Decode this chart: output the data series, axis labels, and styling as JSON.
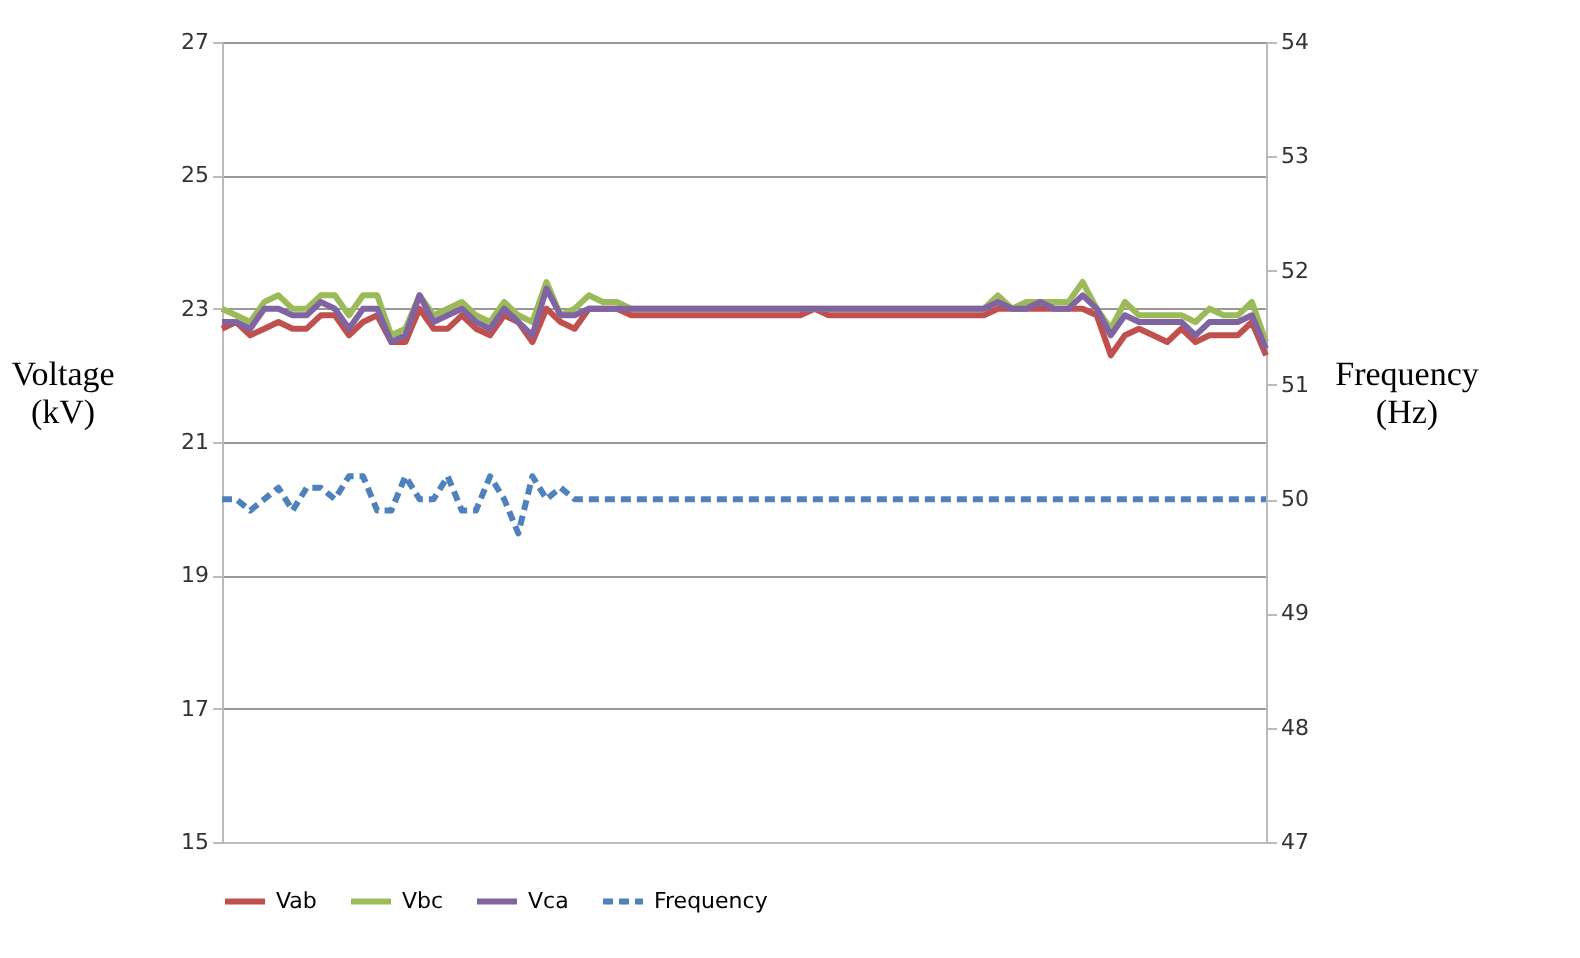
{
  "chart_data": {
    "type": "line",
    "ylabel": "Voltage (kV)",
    "y2label": "Frequency (Hz)",
    "categories": [
      null,
      null,
      null,
      null,
      null,
      null,
      null,
      null,
      null,
      null,
      null,
      null,
      null,
      null,
      null,
      null,
      null,
      null,
      null,
      null,
      null,
      null,
      null,
      null,
      null,
      null,
      null,
      null,
      null,
      null,
      null,
      null,
      null,
      null,
      null,
      null,
      null,
      null,
      null,
      null,
      null,
      null,
      null,
      null,
      null,
      null,
      null,
      null,
      null,
      null,
      null,
      null,
      null,
      null,
      null,
      null,
      null,
      null,
      null,
      null,
      null,
      null,
      null,
      null,
      null,
      null,
      null,
      null,
      null,
      null,
      null,
      null,
      null,
      null,
      null
    ],
    "series": [
      {
        "name": "Vab",
        "color": "#c0504d",
        "line_style": "solid",
        "values": [
          22.7,
          22.8,
          22.6,
          22.7,
          22.8,
          22.7,
          22.7,
          22.9,
          22.9,
          22.6,
          22.8,
          22.9,
          22.5,
          22.5,
          23.0,
          22.7,
          22.7,
          22.9,
          22.7,
          22.6,
          22.9,
          22.8,
          22.5,
          23.0,
          22.8,
          22.7,
          23.0,
          23.0,
          23.0,
          22.9,
          22.9,
          22.9,
          22.9,
          22.9,
          22.9,
          22.9,
          22.9,
          22.9,
          22.9,
          22.9,
          22.9,
          22.9,
          23.0,
          22.9,
          22.9,
          22.9,
          22.9,
          22.9,
          22.9,
          22.9,
          22.9,
          22.9,
          22.9,
          22.9,
          22.9,
          23.0,
          23.0,
          23.0,
          23.0,
          23.0,
          23.0,
          23.0,
          22.9,
          22.3,
          22.6,
          22.7,
          22.6,
          22.5,
          22.7,
          22.5,
          22.6,
          22.6,
          22.6,
          22.8,
          22.3
        ]
      },
      {
        "name": "Vbc",
        "color": "#9bbb59",
        "line_style": "solid",
        "values": [
          23.0,
          22.9,
          22.8,
          23.1,
          23.2,
          23.0,
          23.0,
          23.2,
          23.2,
          22.9,
          23.2,
          23.2,
          22.6,
          22.7,
          23.2,
          22.9,
          23.0,
          23.1,
          22.9,
          22.8,
          23.1,
          22.9,
          22.8,
          23.4,
          22.9,
          23.0,
          23.2,
          23.1,
          23.1,
          23.0,
          23.0,
          23.0,
          23.0,
          23.0,
          23.0,
          23.0,
          23.0,
          23.0,
          23.0,
          23.0,
          23.0,
          23.0,
          23.0,
          23.0,
          23.0,
          23.0,
          23.0,
          23.0,
          23.0,
          23.0,
          23.0,
          23.0,
          23.0,
          23.0,
          23.0,
          23.2,
          23.0,
          23.1,
          23.1,
          23.1,
          23.1,
          23.4,
          23.0,
          22.7,
          23.1,
          22.9,
          22.9,
          22.9,
          22.9,
          22.8,
          23.0,
          22.9,
          22.9,
          23.1,
          22.5
        ]
      },
      {
        "name": "Vca",
        "color": "#8064a2",
        "line_style": "solid",
        "values": [
          22.8,
          22.8,
          22.7,
          23.0,
          23.0,
          22.9,
          22.9,
          23.1,
          23.0,
          22.7,
          23.0,
          23.0,
          22.5,
          22.6,
          23.2,
          22.8,
          22.9,
          23.0,
          22.8,
          22.7,
          23.0,
          22.8,
          22.6,
          23.3,
          22.9,
          22.9,
          23.0,
          23.0,
          23.0,
          23.0,
          23.0,
          23.0,
          23.0,
          23.0,
          23.0,
          23.0,
          23.0,
          23.0,
          23.0,
          23.0,
          23.0,
          23.0,
          23.0,
          23.0,
          23.0,
          23.0,
          23.0,
          23.0,
          23.0,
          23.0,
          23.0,
          23.0,
          23.0,
          23.0,
          23.0,
          23.1,
          23.0,
          23.0,
          23.1,
          23.0,
          23.0,
          23.2,
          23.0,
          22.6,
          22.9,
          22.8,
          22.8,
          22.8,
          22.8,
          22.6,
          22.8,
          22.8,
          22.8,
          22.9,
          22.4
        ]
      },
      {
        "name": "Frequency",
        "color": "#4f81bd",
        "axis": "y2",
        "line_style": "dashed",
        "values": [
          50.0,
          50.0,
          49.9,
          50.0,
          50.1,
          49.9,
          50.1,
          50.1,
          50.0,
          50.2,
          50.2,
          49.9,
          49.9,
          50.2,
          50.0,
          50.0,
          50.2,
          49.9,
          49.9,
          50.2,
          50.0,
          49.7,
          50.2,
          50.0,
          50.1,
          50.0,
          50.0,
          50.0,
          50.0,
          50.0,
          50.0,
          50.0,
          50.0,
          50.0,
          50.0,
          50.0,
          50.0,
          50.0,
          50.0,
          50.0,
          50.0,
          50.0,
          50.0,
          50.0,
          50.0,
          50.0,
          50.0,
          50.0,
          50.0,
          50.0,
          50.0,
          50.0,
          50.0,
          50.0,
          50.0,
          50.0,
          50.0,
          50.0,
          50.0,
          50.0,
          50.0,
          50.0,
          50.0,
          50.0,
          50.0,
          50.0,
          50.0,
          50.0,
          50.0,
          50.0,
          50.0,
          50.0,
          50.0,
          50.0,
          50.0
        ]
      }
    ],
    "ylim": [
      15,
      27
    ],
    "yticks": [
      15,
      17,
      19,
      21,
      23,
      25,
      27
    ],
    "y2lim": [
      47,
      54
    ],
    "y2ticks": [
      47,
      48,
      49,
      50,
      51,
      52,
      53,
      54
    ],
    "grid": "y",
    "legend": "bottom",
    "tick_labels": "y"
  }
}
